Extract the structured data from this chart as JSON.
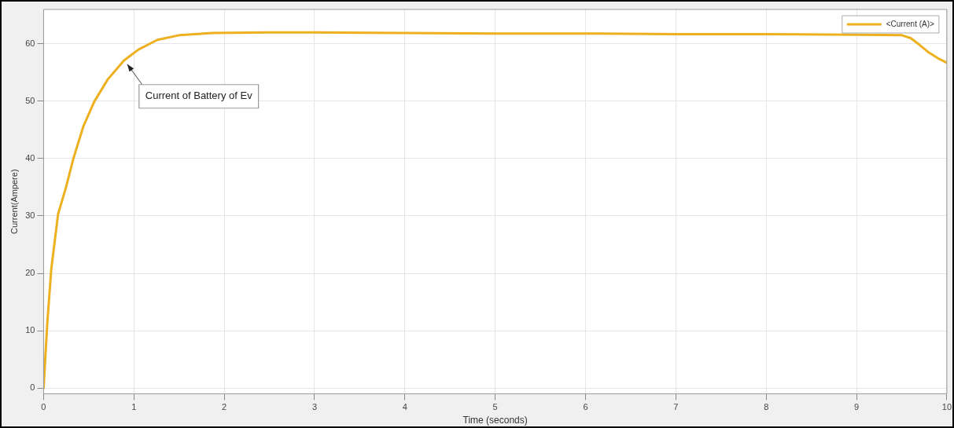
{
  "chart_data": {
    "type": "line",
    "xlabel": "Time (seconds)",
    "ylabel": "Current(Ampere)",
    "x": [
      0,
      0.04,
      0.085,
      0.16,
      0.25,
      0.33,
      0.44,
      0.56,
      0.71,
      0.89,
      1.05,
      1.26,
      1.5,
      1.87,
      2.48,
      3,
      4,
      5,
      6,
      7,
      8,
      9,
      9.5,
      9.6,
      9.7,
      9.8,
      9.9,
      10
    ],
    "series": [
      {
        "name": "<Current (A)>",
        "color": "#edb120",
        "values": [
          0,
          11.1,
          20.7,
          30.3,
          35.1,
          40,
          45.6,
          49.9,
          53.8,
          57.1,
          59,
          60.7,
          61.5,
          61.9,
          62,
          62,
          61.9,
          61.8,
          61.8,
          61.7,
          61.7,
          61.6,
          61.5,
          61,
          59.8,
          58.5,
          57.5,
          56.7
        ]
      }
    ],
    "xlim": [
      0,
      10
    ],
    "xticks": [
      0,
      1,
      2,
      3,
      4,
      5,
      6,
      7,
      8,
      9,
      10
    ],
    "ylim": [
      -1,
      66
    ],
    "yticks": [
      0,
      10,
      20,
      30,
      40,
      50,
      60
    ],
    "grid": true,
    "legend": "top right",
    "marker": "none",
    "line_style": "solid",
    "annotations": [
      {
        "text": "Current of Battery of Ev",
        "x": 0.9,
        "y": 57
      }
    ]
  }
}
